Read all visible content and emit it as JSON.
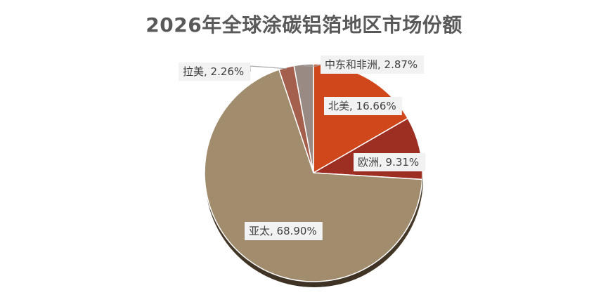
{
  "chart_data": {
    "type": "pie",
    "title": "2026年全球涂碳铝箔地区市场份额",
    "categories": [
      "北美",
      "欧洲",
      "亚太",
      "拉美",
      "中东和非洲"
    ],
    "values": [
      16.66,
      9.31,
      68.9,
      2.26,
      2.87
    ],
    "labels": [
      "北美, 16.66%",
      "欧洲, 9.31%",
      "亚太, 68.90%",
      "拉美, 2.26%",
      "中东和非洲, 2.87%"
    ],
    "colors": [
      "#D0471C",
      "#9C2E22",
      "#A18D6D",
      "#A45F4D",
      "#9A8A84"
    ],
    "legend": "none",
    "start_angle": "12 o'clock",
    "direction": "clockwise"
  }
}
